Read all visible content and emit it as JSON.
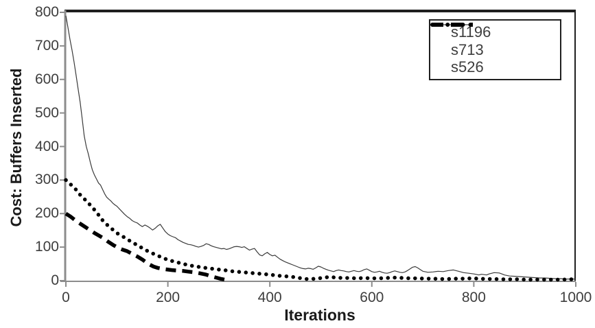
{
  "figure": {
    "background": "#ffffff"
  },
  "chart_data": {
    "type": "line",
    "title": "",
    "xlabel": "Iterations",
    "ylabel": "Cost: Buffers Inserted",
    "xlim": [
      0,
      1000
    ],
    "ylim": [
      0,
      800
    ],
    "x_ticks": [
      0,
      200,
      400,
      600,
      800,
      1000
    ],
    "y_ticks": [
      0,
      100,
      200,
      300,
      400,
      500,
      600,
      700,
      800
    ],
    "grid": false,
    "legend_position": "top-right",
    "colors": {
      "axis": "#8c8c8c",
      "plot_border": "#1f1f1f",
      "tick_text": "#3d3d3d",
      "series_solid": "#3a3a3a",
      "series_black": "#000000",
      "background": "#ffffff"
    },
    "series": [
      {
        "name": "s1196",
        "line_style": "solid",
        "stroke_width": 1.2,
        "color": "#3a3a3a",
        "points": [
          [
            0,
            790
          ],
          [
            4,
            755
          ],
          [
            8,
            720
          ],
          [
            12,
            688
          ],
          [
            16,
            652
          ],
          [
            20,
            612
          ],
          [
            24,
            572
          ],
          [
            28,
            532
          ],
          [
            32,
            482
          ],
          [
            36,
            432
          ],
          [
            40,
            400
          ],
          [
            44,
            378
          ],
          [
            48,
            352
          ],
          [
            52,
            330
          ],
          [
            56,
            315
          ],
          [
            60,
            303
          ],
          [
            64,
            291
          ],
          [
            68,
            285
          ],
          [
            72,
            272
          ],
          [
            76,
            259
          ],
          [
            80,
            249
          ],
          [
            84,
            243
          ],
          [
            88,
            238
          ],
          [
            92,
            231
          ],
          [
            96,
            226
          ],
          [
            100,
            222
          ],
          [
            105,
            214
          ],
          [
            110,
            206
          ],
          [
            115,
            198
          ],
          [
            120,
            191
          ],
          [
            125,
            186
          ],
          [
            130,
            179
          ],
          [
            135,
            175
          ],
          [
            140,
            172
          ],
          [
            145,
            166
          ],
          [
            150,
            161
          ],
          [
            155,
            166
          ],
          [
            160,
            162
          ],
          [
            165,
            157
          ],
          [
            170,
            151
          ],
          [
            175,
            156
          ],
          [
            180,
            163
          ],
          [
            185,
            168
          ],
          [
            190,
            157
          ],
          [
            195,
            146
          ],
          [
            200,
            139
          ],
          [
            205,
            134
          ],
          [
            210,
            131
          ],
          [
            215,
            128
          ],
          [
            220,
            122
          ],
          [
            225,
            118
          ],
          [
            230,
            114
          ],
          [
            235,
            111
          ],
          [
            240,
            108
          ],
          [
            245,
            107
          ],
          [
            250,
            105
          ],
          [
            255,
            102
          ],
          [
            260,
            100
          ],
          [
            265,
            102
          ],
          [
            270,
            105
          ],
          [
            275,
            110
          ],
          [
            280,
            108
          ],
          [
            285,
            104
          ],
          [
            290,
            101
          ],
          [
            295,
            99
          ],
          [
            300,
            97
          ],
          [
            305,
            95
          ],
          [
            310,
            96
          ],
          [
            315,
            93
          ],
          [
            320,
            95
          ],
          [
            325,
            98
          ],
          [
            330,
            101
          ],
          [
            335,
            102
          ],
          [
            340,
            101
          ],
          [
            345,
            99
          ],
          [
            350,
            101
          ],
          [
            355,
            96
          ],
          [
            360,
            91
          ],
          [
            365,
            94
          ],
          [
            370,
            96
          ],
          [
            375,
            86
          ],
          [
            380,
            77
          ],
          [
            385,
            74
          ],
          [
            390,
            80
          ],
          [
            395,
            84
          ],
          [
            400,
            78
          ],
          [
            405,
            74
          ],
          [
            410,
            76
          ],
          [
            415,
            70
          ],
          [
            420,
            64
          ],
          [
            425,
            60
          ],
          [
            430,
            56
          ],
          [
            435,
            53
          ],
          [
            440,
            50
          ],
          [
            445,
            47
          ],
          [
            450,
            44
          ],
          [
            455,
            41
          ],
          [
            460,
            38
          ],
          [
            465,
            36
          ],
          [
            470,
            35
          ],
          [
            475,
            37
          ],
          [
            480,
            36
          ],
          [
            485,
            34
          ],
          [
            490,
            38
          ],
          [
            495,
            43
          ],
          [
            500,
            41
          ],
          [
            505,
            37
          ],
          [
            510,
            34
          ],
          [
            515,
            31
          ],
          [
            520,
            29
          ],
          [
            525,
            27
          ],
          [
            530,
            30
          ],
          [
            535,
            32
          ],
          [
            540,
            30
          ],
          [
            545,
            29
          ],
          [
            550,
            27
          ],
          [
            555,
            26
          ],
          [
            560,
            28
          ],
          [
            565,
            30
          ],
          [
            570,
            28
          ],
          [
            575,
            27
          ],
          [
            580,
            29
          ],
          [
            585,
            33
          ],
          [
            590,
            35
          ],
          [
            595,
            31
          ],
          [
            600,
            27
          ],
          [
            605,
            25
          ],
          [
            610,
            26
          ],
          [
            615,
            28
          ],
          [
            620,
            25
          ],
          [
            625,
            23
          ],
          [
            630,
            22
          ],
          [
            635,
            24
          ],
          [
            640,
            27
          ],
          [
            645,
            29
          ],
          [
            650,
            27
          ],
          [
            655,
            25
          ],
          [
            660,
            24
          ],
          [
            665,
            26
          ],
          [
            670,
            30
          ],
          [
            675,
            35
          ],
          [
            680,
            40
          ],
          [
            685,
            42
          ],
          [
            690,
            38
          ],
          [
            695,
            33
          ],
          [
            700,
            28
          ],
          [
            710,
            25
          ],
          [
            720,
            26
          ],
          [
            730,
            28
          ],
          [
            740,
            27
          ],
          [
            750,
            30
          ],
          [
            760,
            32
          ],
          [
            770,
            28
          ],
          [
            780,
            24
          ],
          [
            790,
            22
          ],
          [
            800,
            20
          ],
          [
            810,
            17
          ],
          [
            815,
            19
          ],
          [
            820,
            18
          ],
          [
            825,
            17
          ],
          [
            830,
            20
          ],
          [
            840,
            24
          ],
          [
            850,
            23
          ],
          [
            855,
            20
          ],
          [
            860,
            17
          ],
          [
            870,
            14
          ],
          [
            880,
            13
          ],
          [
            890,
            12
          ],
          [
            900,
            11
          ],
          [
            910,
            10
          ],
          [
            920,
            9
          ],
          [
            930,
            8
          ],
          [
            940,
            8
          ],
          [
            950,
            7
          ],
          [
            960,
            6
          ],
          [
            970,
            6
          ],
          [
            980,
            5
          ],
          [
            990,
            5
          ],
          [
            1000,
            5
          ]
        ]
      },
      {
        "name": "s713",
        "line_style": "dotted",
        "stroke_width": 5.5,
        "color": "#000000",
        "points": [
          [
            0,
            300
          ],
          [
            10,
            286
          ],
          [
            20,
            271
          ],
          [
            28,
            256
          ],
          [
            36,
            244
          ],
          [
            45,
            230
          ],
          [
            55,
            213
          ],
          [
            64,
            196
          ],
          [
            73,
            178
          ],
          [
            82,
            165
          ],
          [
            92,
            152
          ],
          [
            102,
            140
          ],
          [
            110,
            133
          ],
          [
            117,
            127
          ],
          [
            128,
            116
          ],
          [
            140,
            106
          ],
          [
            150,
            97
          ],
          [
            163,
            86
          ],
          [
            175,
            78
          ],
          [
            187,
            70
          ],
          [
            200,
            62
          ],
          [
            212,
            57
          ],
          [
            225,
            52
          ],
          [
            238,
            47
          ],
          [
            252,
            43
          ],
          [
            265,
            40
          ],
          [
            278,
            37
          ],
          [
            290,
            35
          ],
          [
            300,
            33
          ],
          [
            312,
            31
          ],
          [
            325,
            28
          ],
          [
            340,
            26
          ],
          [
            355,
            24
          ],
          [
            370,
            22
          ],
          [
            385,
            20
          ],
          [
            400,
            18
          ],
          [
            415,
            15
          ],
          [
            430,
            13
          ],
          [
            445,
            11
          ],
          [
            458,
            8
          ],
          [
            468,
            5
          ],
          [
            480,
            5
          ],
          [
            492,
            6
          ],
          [
            505,
            9
          ],
          [
            518,
            11
          ],
          [
            530,
            9
          ],
          [
            542,
            8
          ],
          [
            555,
            8
          ],
          [
            570,
            7
          ],
          [
            585,
            8
          ],
          [
            600,
            7
          ],
          [
            615,
            7
          ],
          [
            630,
            8
          ],
          [
            645,
            9
          ],
          [
            660,
            8
          ],
          [
            675,
            7
          ],
          [
            690,
            7
          ],
          [
            705,
            6
          ],
          [
            720,
            6
          ],
          [
            735,
            5
          ],
          [
            750,
            5
          ],
          [
            765,
            6
          ],
          [
            780,
            6
          ],
          [
            795,
            7
          ],
          [
            810,
            6
          ],
          [
            825,
            5
          ],
          [
            840,
            5
          ],
          [
            855,
            4
          ],
          [
            870,
            4
          ],
          [
            885,
            4
          ],
          [
            900,
            3
          ],
          [
            915,
            3
          ],
          [
            930,
            3
          ],
          [
            945,
            3
          ],
          [
            960,
            3
          ],
          [
            975,
            3
          ],
          [
            990,
            4
          ],
          [
            1000,
            4
          ]
        ]
      },
      {
        "name": "s526",
        "line_style": "dashed",
        "stroke_width": 5.5,
        "color": "#000000",
        "points": [
          [
            0,
            200
          ],
          [
            10,
            190
          ],
          [
            20,
            178
          ],
          [
            30,
            168
          ],
          [
            36,
            162
          ],
          [
            45,
            153
          ],
          [
            55,
            143
          ],
          [
            64,
            135
          ],
          [
            73,
            127
          ],
          [
            82,
            117
          ],
          [
            92,
            107
          ],
          [
            102,
            98
          ],
          [
            112,
            92
          ],
          [
            120,
            88
          ],
          [
            130,
            80
          ],
          [
            140,
            72
          ],
          [
            150,
            63
          ],
          [
            157,
            55
          ],
          [
            163,
            49
          ],
          [
            172,
            42
          ],
          [
            180,
            38
          ],
          [
            190,
            35
          ],
          [
            200,
            33
          ],
          [
            210,
            31
          ],
          [
            220,
            30
          ],
          [
            230,
            29
          ],
          [
            240,
            27
          ],
          [
            252,
            25
          ],
          [
            262,
            22
          ],
          [
            275,
            18
          ],
          [
            285,
            13
          ],
          [
            295,
            9
          ],
          [
            305,
            5
          ],
          [
            315,
            2
          ]
        ]
      }
    ]
  }
}
